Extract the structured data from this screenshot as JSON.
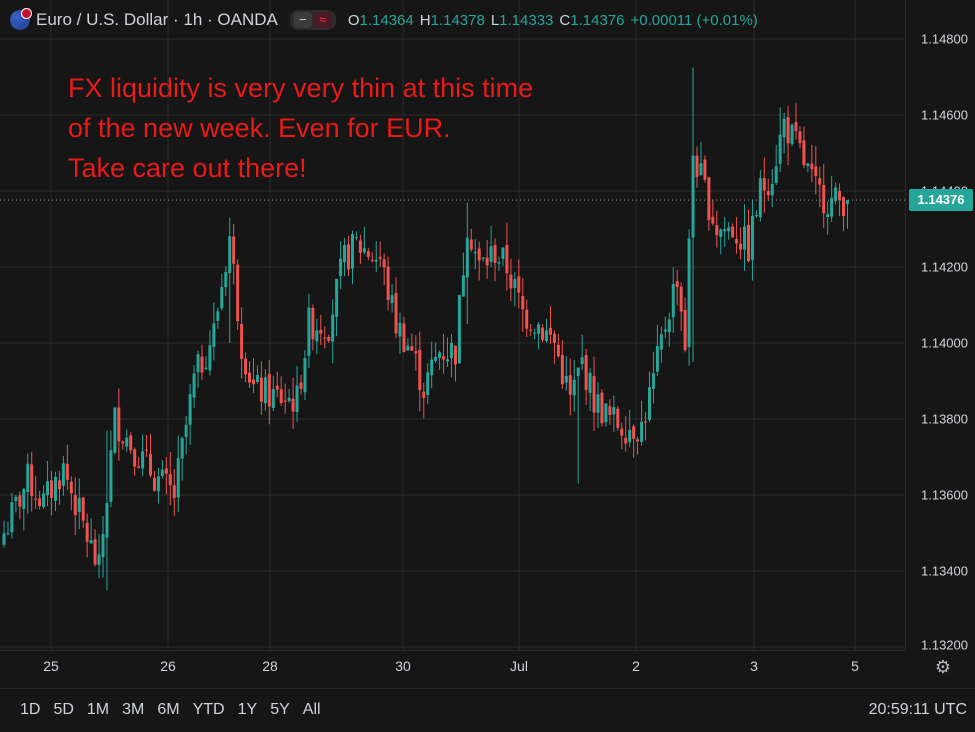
{
  "legend": {
    "symbol": "Euro / U.S. Dollar · 1h · OANDA",
    "open_label": "O",
    "open": "1.14364",
    "high_label": "H",
    "high": "1.14378",
    "low_label": "L",
    "low": "1.14333",
    "close_label": "C",
    "close": "1.14376",
    "change": "+0.00011 (+0.01%)",
    "hide_icon": "minus-icon",
    "indicator_icon": "wave-icon"
  },
  "annotation": {
    "lines": [
      "FX liquidity is very very thin at this time",
      "of the new week. Even for EUR.",
      "Take care out there!"
    ],
    "color": "#e81a1a"
  },
  "price_axis": {
    "labels": [
      "1.14800",
      "1.14600",
      "1.14400",
      "1.14200",
      "1.14000",
      "1.13800",
      "1.13600",
      "1.13400",
      "1.13200"
    ],
    "last_price": "1.14376"
  },
  "time_axis": {
    "labels": [
      "25",
      "26",
      "28",
      "30",
      "Jul",
      "2",
      "3",
      "5"
    ]
  },
  "bottom_bar": {
    "ranges": [
      "1D",
      "5D",
      "1M",
      "3M",
      "6M",
      "YTD",
      "1Y",
      "5Y",
      "All"
    ],
    "clock": "20:59:11 UTC"
  },
  "colors": {
    "up": "#26a69a",
    "down": "#ef5350",
    "background": "#161616",
    "grid": "#2a2a2a"
  },
  "chart_data": {
    "type": "candlestick",
    "title": "Euro / U.S. Dollar · 1h · OANDA",
    "ylim": [
      1.132,
      1.1485
    ],
    "x_labels": [
      "25",
      "26",
      "28",
      "30",
      "Jul",
      "2",
      "3",
      "5"
    ],
    "anchors": [
      [
        0,
        1.135
      ],
      [
        6,
        1.1364
      ],
      [
        10,
        1.1358
      ],
      [
        15,
        1.1367
      ],
      [
        20,
        1.1352
      ],
      [
        24,
        1.134
      ],
      [
        28,
        1.138
      ],
      [
        33,
        1.1372
      ],
      [
        38,
        1.1365
      ],
      [
        43,
        1.136
      ],
      [
        48,
        1.139
      ],
      [
        53,
        1.1403
      ],
      [
        57,
        1.1428
      ],
      [
        60,
        1.14
      ],
      [
        63,
        1.1388
      ],
      [
        68,
        1.1386
      ],
      [
        74,
        1.1385
      ],
      [
        77,
        1.1405
      ],
      [
        82,
        1.1405
      ],
      [
        86,
        1.1422
      ],
      [
        89,
        1.1426
      ],
      [
        95,
        1.1422
      ],
      [
        99,
        1.1405
      ],
      [
        103,
        1.1398
      ],
      [
        106,
        1.1388
      ],
      [
        110,
        1.1398
      ],
      [
        114,
        1.1398
      ],
      [
        117,
        1.1432
      ],
      [
        120,
        1.142
      ],
      [
        124,
        1.1424
      ],
      [
        127,
        1.142
      ],
      [
        131,
        1.1408
      ],
      [
        135,
        1.1405
      ],
      [
        139,
        1.14
      ],
      [
        143,
        1.1385
      ],
      [
        146,
        1.1395
      ],
      [
        149,
        1.1385
      ],
      [
        153,
        1.138
      ],
      [
        157,
        1.1378
      ],
      [
        161,
        1.1378
      ],
      [
        164,
        1.139
      ],
      [
        167,
        1.1405
      ],
      [
        170,
        1.1418
      ],
      [
        172,
        1.14
      ],
      [
        174,
        1.145
      ],
      [
        177,
        1.144
      ],
      [
        180,
        1.143
      ],
      [
        184,
        1.143
      ],
      [
        188,
        1.1425
      ],
      [
        191,
        1.144
      ],
      [
        194,
        1.1445
      ],
      [
        197,
        1.1458
      ],
      [
        201,
        1.145
      ],
      [
        205,
        1.144
      ],
      [
        209,
        1.1437
      ],
      [
        213,
        1.1438
      ]
    ],
    "spikes": [
      {
        "bar": 174,
        "high": 1.14725,
        "low": 1.1395
      },
      {
        "bar": 145,
        "high": 1.139,
        "low": 1.1363
      },
      {
        "bar": 57,
        "high": 1.1433,
        "low": 1.14
      },
      {
        "bar": 117,
        "high": 1.1437,
        "low": 1.1405
      },
      {
        "bar": 196,
        "high": 1.1462,
        "low": 1.1445
      },
      {
        "bar": 26,
        "high": 1.1377,
        "low": 1.1335
      },
      {
        "bar": 186,
        "high": 1.143,
        "low": 1.1422
      }
    ],
    "last_close": 1.14376
  }
}
